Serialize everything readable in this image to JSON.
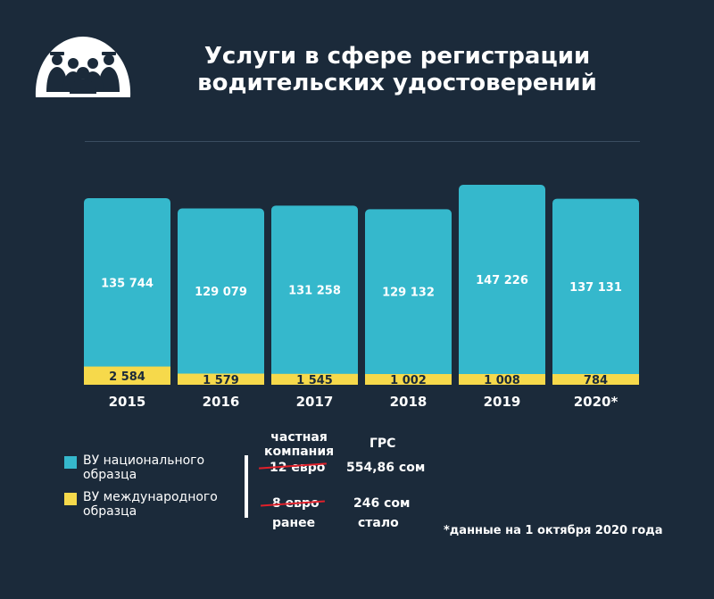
{
  "header": {
    "title_line1": "Услуги в сфере регистрации",
    "title_line2": "водительских удостоверений"
  },
  "chart_data": {
    "type": "bar",
    "stacked": true,
    "categories": [
      "2015",
      "2016",
      "2017",
      "2018",
      "2019",
      "2020*"
    ],
    "series": [
      {
        "name": "ВУ международного образца",
        "color": "#f6d94b",
        "values": [
          2584,
          1579,
          1545,
          1002,
          1008,
          784
        ],
        "labels": [
          "2 584",
          "1 579",
          "1 545",
          "1 002",
          "1 008",
          "784"
        ]
      },
      {
        "name": "ВУ национального образца",
        "color": "#35b8cc",
        "values": [
          135744,
          129079,
          131258,
          129132,
          147226,
          137131
        ],
        "labels": [
          "135 744",
          "129 079",
          "131 258",
          "129 132",
          "147 226",
          "137 131"
        ]
      }
    ],
    "grid": false,
    "legend_position": "bottom-left"
  },
  "legend": {
    "national_line1": "ВУ национального",
    "national_line2": "образца",
    "international_line1": "ВУ международного",
    "international_line2": "образца"
  },
  "prices": {
    "company_header_line1": "частная",
    "company_header_line2": "компания",
    "grs_header": "ГРС",
    "company_national": "12 евро",
    "grs_national": "554,86 сом",
    "company_international": "8 евро",
    "grs_international": "246 сом",
    "before_label": "ранее",
    "after_label": "стало"
  },
  "footnote": "*данные на 1 октября 2020 года",
  "colors": {
    "background": "#1b2a3a",
    "national": "#35b8cc",
    "international": "#f6d94b",
    "strike": "#e0202a"
  }
}
